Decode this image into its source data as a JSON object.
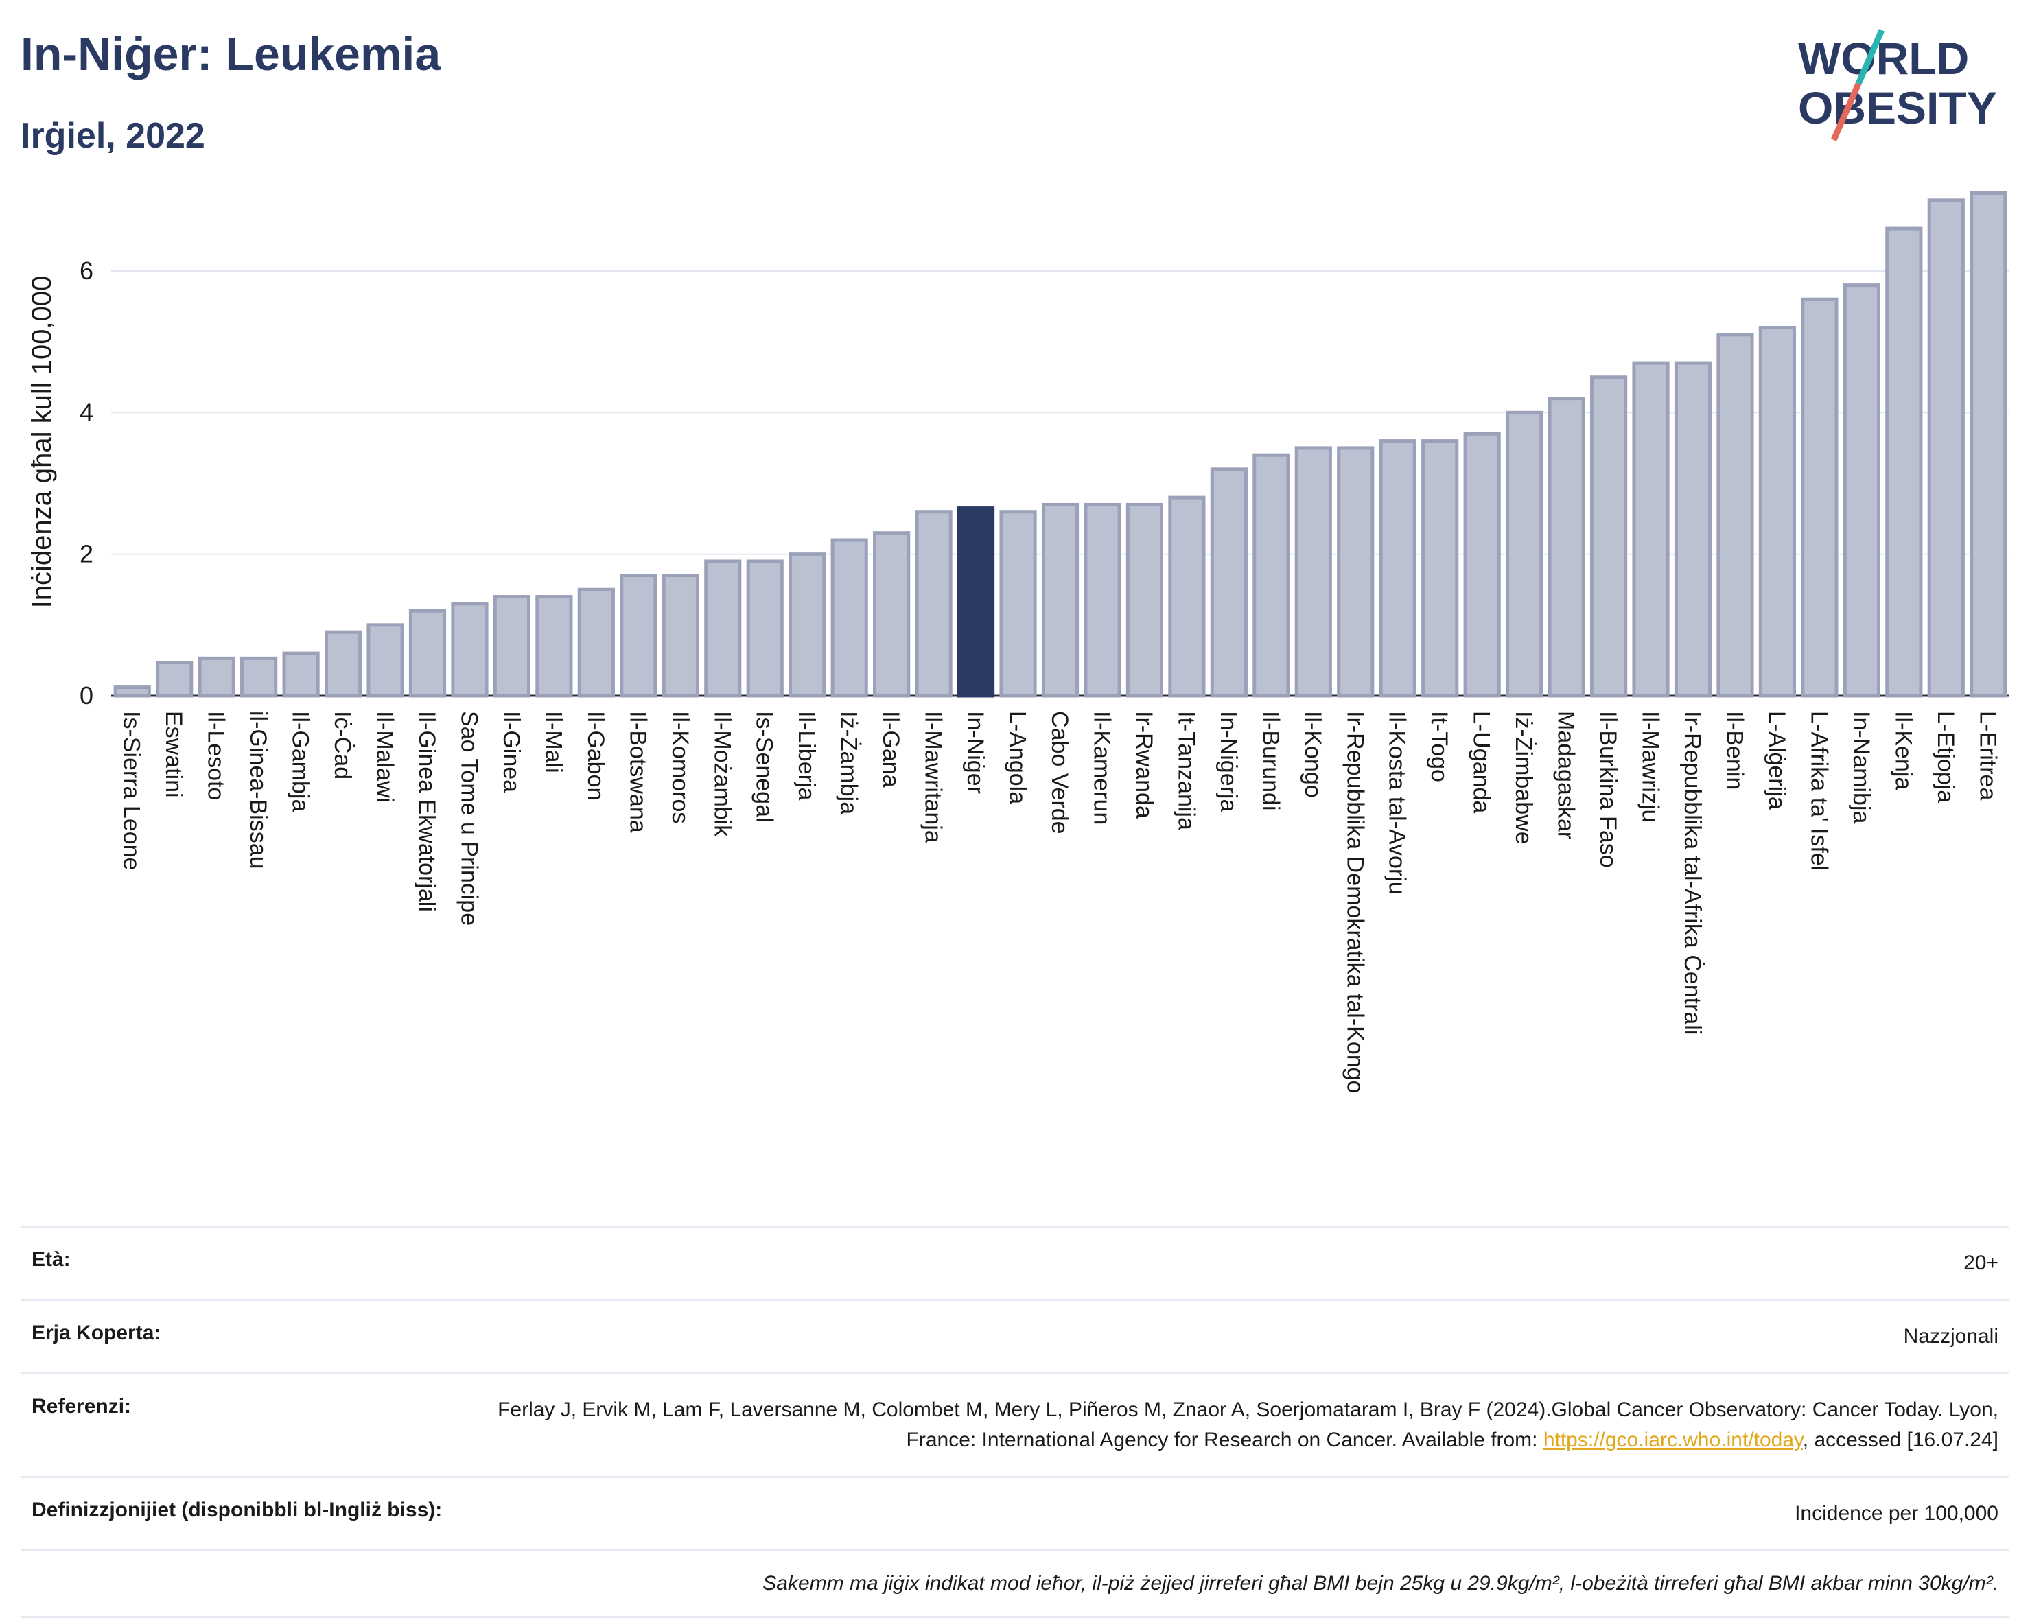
{
  "header": {
    "title": "In-Niġer: Leukemia",
    "subtitle": "Irġiel, 2022"
  },
  "logo": {
    "line1": "WORLD",
    "line2": "OBESITY"
  },
  "colors": {
    "title": "#2b3a63",
    "bar": "#bcc1d1",
    "bar_edge": "#9aa1b8",
    "highlight": "#2b3a63",
    "grid": "#e3e6ee",
    "link": "#e0a81a",
    "logo_teal": "#2bb5b0",
    "logo_red": "#e4685c"
  },
  "chart_data": {
    "type": "bar",
    "ylabel": "Inċidenza għal kull 100,000",
    "ylim": [
      0,
      7.25
    ],
    "yticks": [
      0,
      2,
      4,
      6
    ],
    "grid": true,
    "highlight": "In-Niġer",
    "categories": [
      "Is-Sierra Leone",
      "Eswatini",
      "Il-Lesoto",
      "il-Ginea-Bissau",
      "Il-Gambja",
      "Iċ-Ċad",
      "Il-Malawi",
      "Il-Ginea Ekwatorjali",
      "Sao Tome u Principe",
      "Il-Ginea",
      "Il-Mali",
      "Il-Gabon",
      "Il-Botswana",
      "Il-Komoros",
      "Il-Możambik",
      "Is-Senegal",
      "Il-Liberja",
      "Iż-Żambja",
      "Il-Gana",
      "Il-Mawritanja",
      "In-Niġer",
      "L-Angola",
      "Cabo Verde",
      "Il-Kamerun",
      "Ir-Rwanda",
      "It-Tanzanija",
      "In-Niġerja",
      "Il-Burundi",
      "Il-Kongo",
      "Ir-Repubblika Demokratika tal-Kongo",
      "Il-Kosta tal-Avorju",
      "It-Togo",
      "L-Uganda",
      "Iż-Żimbabwe",
      "Madagaskar",
      "Il-Burkina Faso",
      "Il-Mawrizju",
      "Ir-Repubblika tal-Afrika Ċentrali",
      "Il-Benin",
      "L-Alġerija",
      "L-Afrika ta' Isfel",
      "In-Namibja",
      "Il-Kenja",
      "L-Etjopja",
      "L-Eritrea"
    ],
    "values": [
      0.12,
      0.47,
      0.53,
      0.53,
      0.6,
      0.9,
      1.0,
      1.2,
      1.3,
      1.4,
      1.4,
      1.5,
      1.7,
      1.7,
      1.9,
      1.9,
      2.0,
      2.2,
      2.3,
      2.6,
      2.65,
      2.6,
      2.7,
      2.7,
      2.7,
      2.8,
      3.2,
      3.4,
      3.5,
      3.5,
      3.6,
      3.6,
      3.7,
      4.0,
      4.2,
      4.5,
      4.7,
      4.7,
      5.1,
      5.2,
      5.6,
      5.8,
      6.6,
      7.0,
      7.1
    ]
  },
  "info": {
    "age_label": "Età:",
    "age_value": "20+",
    "area_label": "Erja Koperta:",
    "area_value": "Nazzjonali",
    "ref_label": "Referenzi:",
    "ref_text_1": "Ferlay J, Ervik M, Lam F, Laversanne M, Colombet M, Mery L, Piñeros M, Znaor A, Soerjomataram I, Bray F (2024).Global Cancer Observatory: Cancer Today. Lyon, France: International Agency for Research on Cancer. Available from: ",
    "ref_link": "https://gco.iarc.who.int/today",
    "ref_text_2": ", accessed [16.07.24]",
    "def_label": "Definizzjonijiet (disponibbli bl-Ingliż biss):",
    "def_value": "Incidence per 100,000",
    "note": "Sakemm ma jiġix indikat mod ieħor, il-piż żejjed jirreferi għal BMI bejn 25kg u 29.9kg/m², l-obeżità tirreferi għal BMI akbar minn 30kg/m²."
  }
}
